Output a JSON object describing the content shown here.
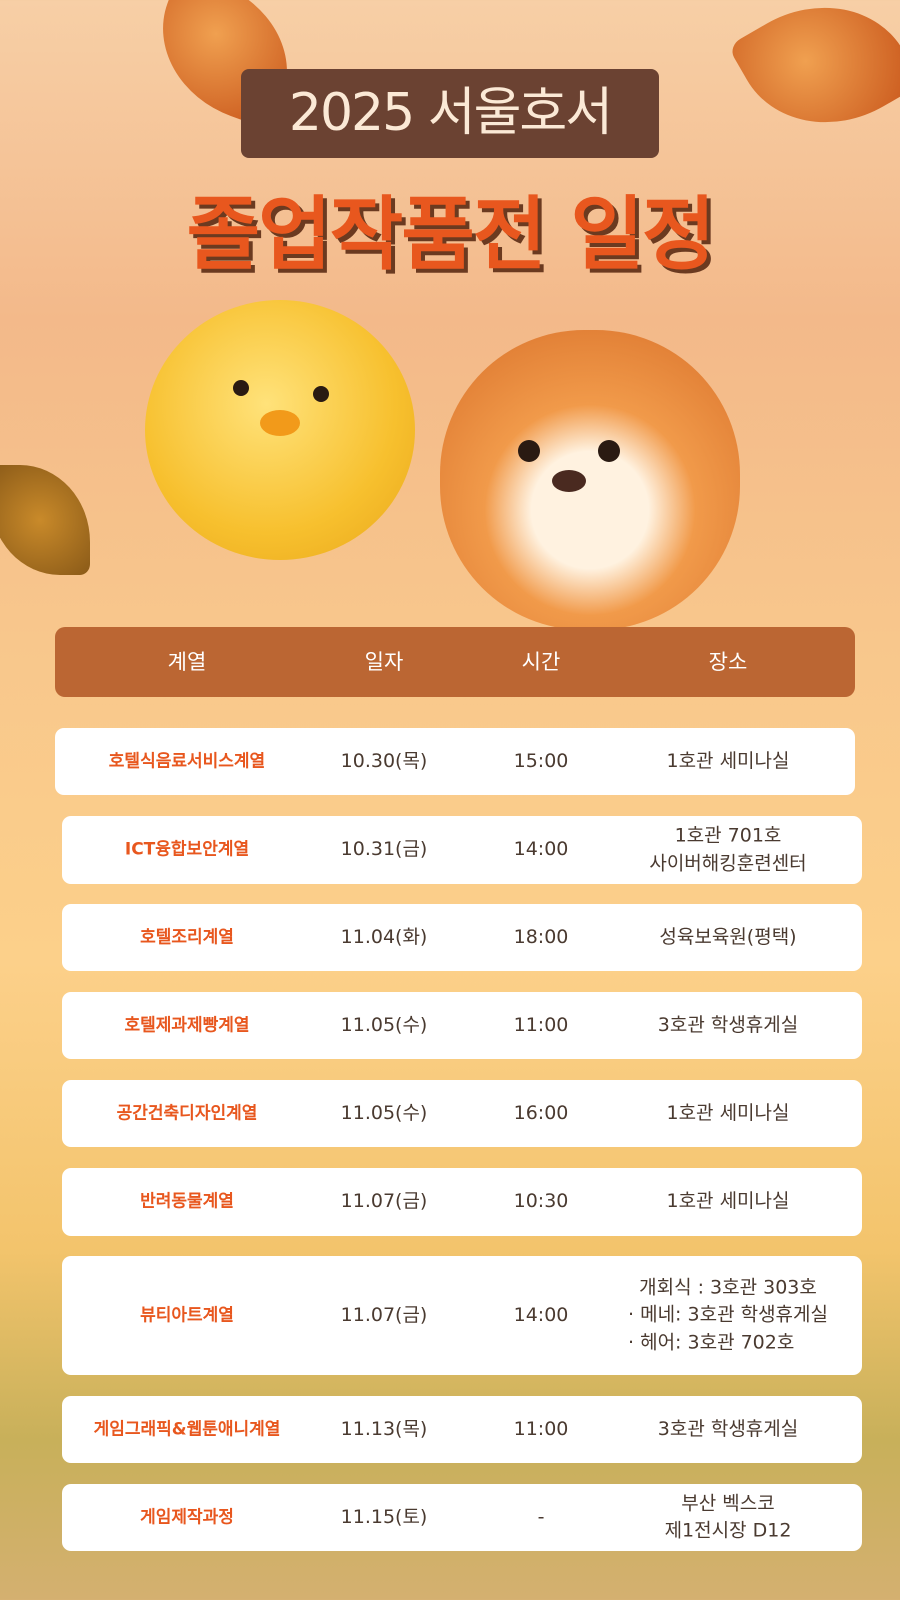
{
  "title": {
    "line1": "2025 서울호서",
    "line2": "졸업작품전 일정"
  },
  "colors": {
    "accent": "#e8571e",
    "header_bg": "#bb6633",
    "title_box": "#6b4232"
  },
  "table": {
    "headers": [
      "계열",
      "일자",
      "시간",
      "장소"
    ],
    "rows": [
      {
        "dept": "호텔식음료서비스계열",
        "date": "10.30(목)",
        "time": "15:00",
        "place": [
          "1호관 세미나실"
        ]
      },
      {
        "dept": "ICT융합보안계열",
        "date": "10.31(금)",
        "time": "14:00",
        "place": [
          "1호관 701호",
          "사이버해킹훈련센터"
        ]
      },
      {
        "dept": "호텔조리계열",
        "date": "11.04(화)",
        "time": "18:00",
        "place": [
          "성육보육원(평택)"
        ]
      },
      {
        "dept": "호텔제과제빵계열",
        "date": "11.05(수)",
        "time": "11:00",
        "place": [
          "3호관 학생휴게실"
        ]
      },
      {
        "dept": "공간건축디자인계열",
        "date": "11.05(수)",
        "time": "16:00",
        "place": [
          "1호관 세미나실"
        ]
      },
      {
        "dept": "반려동물계열",
        "date": "11.07(금)",
        "time": "10:30",
        "place": [
          "1호관 세미나실"
        ]
      },
      {
        "dept": "뷰티아트계열",
        "date": "11.07(금)",
        "time": "14:00",
        "place": [
          "개회식 : 3호관 303호",
          "· 메네: 3호관 학생휴게실",
          "· 헤어: 3호관 702호"
        ]
      },
      {
        "dept": "게임그래픽&웹툰애니계열",
        "date": "11.13(목)",
        "time": "11:00",
        "place": [
          "3호관 학생휴게실"
        ]
      },
      {
        "dept": "게임제작과정",
        "date": "11.15(토)",
        "time": "-",
        "place": [
          "부산 벡스코",
          "제1전시장 D12"
        ]
      }
    ]
  }
}
